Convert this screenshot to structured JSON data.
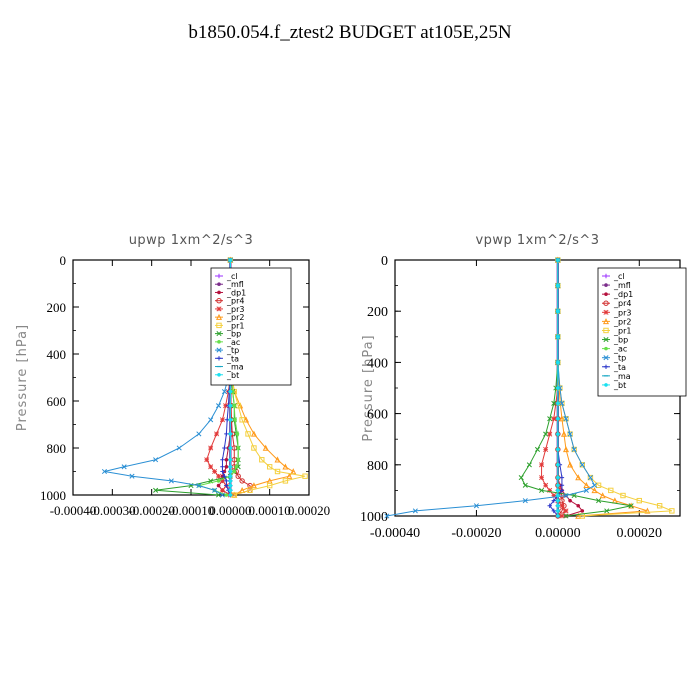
{
  "figure_title": "b1850.054.f_ztest2  BUDGET at105E,25N",
  "colors": {
    "_cl": "#9b30ff",
    "_mfl": "#7b2d8b",
    "_dp1": "#b5103c",
    "_pr4": "#d12d2d",
    "_pr3": "#e23a3a",
    "_pr2": "#ff9a1a",
    "_pr1": "#f4d03f",
    "_bp": "#2ca02c",
    "_ac": "#66e04a",
    "_tp": "#2a8fd4",
    "_ta": "#2b36c9",
    "_ma": "#17a6c4",
    "_bt": "#19e0f0"
  },
  "chart_data": [
    {
      "type": "line",
      "title": "upwp  1xm^2/s^3",
      "xlabel": "",
      "ylabel": "Pressure [hPa]",
      "xlim": [
        -0.0004,
        0.0002
      ],
      "ylim": [
        1000,
        0
      ],
      "xticks": [
        "-0.00040",
        "-0.00030",
        "-0.00020",
        "-0.00010",
        "0.00000",
        "0.00010",
        "0.00020"
      ],
      "yticks": [
        "0",
        "200",
        "400",
        "600",
        "800",
        "1000"
      ],
      "legend_position": "top-right",
      "grid": false,
      "y": [
        0,
        100,
        200,
        300,
        400,
        500,
        560,
        620,
        680,
        740,
        800,
        850,
        880,
        900,
        920,
        940,
        960,
        980,
        1000
      ],
      "series": [
        {
          "name": "_cl",
          "values": [
            0,
            0,
            0,
            0,
            0,
            0,
            0,
            0,
            0,
            0,
            0,
            0,
            0,
            0,
            0,
            0,
            0,
            0,
            0
          ]
        },
        {
          "name": "_mfl",
          "values": [
            0,
            0,
            0,
            0,
            0,
            0,
            0,
            0,
            0,
            0,
            0,
            0,
            0,
            0,
            0,
            0,
            0,
            0,
            0
          ]
        },
        {
          "name": "_dp1",
          "values": [
            0,
            0,
            0,
            0,
            0,
            0,
            0,
            0,
            0,
            0,
            -5e-06,
            -1e-05,
            -1e-05,
            -1.5e-05,
            -2e-05,
            -2e-05,
            -3e-05,
            -2e-05,
            0
          ]
        },
        {
          "name": "_pr4",
          "values": [
            0,
            0,
            0,
            0,
            0,
            0,
            0,
            2e-06,
            3e-06,
            5e-06,
            1e-05,
            1e-05,
            1e-05,
            1.5e-05,
            2e-05,
            3e-05,
            5e-05,
            5e-05,
            1e-05
          ]
        },
        {
          "name": "_pr3",
          "values": [
            0,
            0,
            0,
            0,
            0,
            0,
            -5e-06,
            -1.2e-05,
            -2e-05,
            -3.5e-05,
            -5e-05,
            -6e-05,
            -5e-05,
            -4e-05,
            -3e-05,
            -2e-05,
            -1e-05,
            -2e-05,
            0
          ]
        },
        {
          "name": "_pr2",
          "values": [
            0,
            0,
            0,
            0,
            0,
            5e-06,
            1e-05,
            2.5e-05,
            4e-05,
            6e-05,
            9e-05,
            0.00012,
            0.00014,
            0.00016,
            0.00015,
            0.0001,
            6e-05,
            3e-05,
            1e-05
          ]
        },
        {
          "name": "_pr1",
          "values": [
            0,
            0,
            0,
            0,
            0,
            5e-06,
            1e-05,
            2e-05,
            3e-05,
            4.5e-05,
            6e-05,
            8e-05,
            0.0001,
            0.00012,
            0.00019,
            0.00014,
            0.0001,
            5e-05,
            1e-05
          ]
        },
        {
          "name": "_bp",
          "values": [
            0,
            0,
            0,
            0,
            0,
            3e-06,
            6e-06,
            1e-05,
            1e-05,
            1.5e-05,
            2e-05,
            2e-05,
            2e-05,
            1e-05,
            0,
            -5e-05,
            -0.0001,
            -0.00019,
            -3e-05
          ]
        },
        {
          "name": "_ac",
          "values": [
            0,
            0,
            0,
            0,
            0,
            3e-06,
            6e-06,
            1e-05,
            1.2e-05,
            1.8e-05,
            2e-05,
            2e-05,
            1.5e-05,
            1e-05,
            0,
            -3e-05,
            -8e-05,
            -4e-05,
            -1e-05
          ]
        },
        {
          "name": "_tp",
          "values": [
            0,
            0,
            0,
            0,
            0,
            -5e-06,
            -1.5e-05,
            -3e-05,
            -5e-05,
            -8e-05,
            -0.00013,
            -0.00019,
            -0.00027,
            -0.00032,
            -0.00025,
            -0.00015,
            -8e-05,
            -4e-05,
            -2e-05
          ]
        },
        {
          "name": "_ta",
          "values": [
            0,
            0,
            0,
            0,
            0,
            0,
            -3e-06,
            -5e-06,
            -8e-06,
            -1e-05,
            -1.5e-05,
            -2e-05,
            -2e-05,
            -2e-05,
            -1.5e-05,
            -1e-05,
            -1e-05,
            -5e-06,
            0
          ]
        },
        {
          "name": "_ma",
          "values": [
            0,
            0,
            0,
            0,
            0,
            0,
            0,
            0,
            0,
            0,
            0,
            0,
            0,
            0,
            0,
            0,
            0,
            0,
            0
          ]
        },
        {
          "name": "_bt",
          "values": [
            0,
            0,
            0,
            0,
            0,
            0,
            0,
            0,
            0,
            0,
            0,
            0,
            0,
            0,
            0,
            0,
            0,
            0,
            0
          ]
        }
      ]
    },
    {
      "type": "line",
      "title": "vpwp  1xm^2/s^3",
      "xlabel": "",
      "ylabel": "Pressure [hPa]",
      "xlim": [
        -0.0004,
        0.0003
      ],
      "ylim": [
        1000,
        0
      ],
      "xticks": [
        "-0.00040",
        "-0.00020",
        "0.00000",
        "0.00020"
      ],
      "yticks": [
        "0",
        "200",
        "400",
        "600",
        "800",
        "1000"
      ],
      "legend_position": "top-right",
      "grid": false,
      "y": [
        0,
        100,
        200,
        300,
        400,
        500,
        560,
        620,
        680,
        740,
        800,
        850,
        880,
        900,
        920,
        940,
        960,
        980,
        1000
      ],
      "series": [
        {
          "name": "_cl",
          "values": [
            0,
            0,
            0,
            0,
            0,
            0,
            0,
            0,
            0,
            0,
            0,
            0,
            0,
            0,
            0,
            0,
            0,
            0,
            0
          ]
        },
        {
          "name": "_mfl",
          "values": [
            0,
            0,
            0,
            0,
            0,
            0,
            0,
            0,
            0,
            0,
            0,
            0,
            0,
            0,
            0,
            0,
            0,
            0,
            0
          ]
        },
        {
          "name": "_dp1",
          "values": [
            0,
            0,
            0,
            0,
            0,
            0,
            0,
            0,
            0,
            0,
            0,
            0,
            5e-06,
            1e-05,
            2e-05,
            3e-05,
            5e-05,
            6e-05,
            2e-05
          ]
        },
        {
          "name": "_pr4",
          "values": [
            0,
            0,
            0,
            0,
            0,
            0,
            0,
            0,
            0,
            0,
            0,
            0,
            0,
            5e-06,
            1e-05,
            1e-05,
            1.5e-05,
            1e-05,
            0
          ]
        },
        {
          "name": "_pr3",
          "values": [
            0,
            0,
            0,
            0,
            0,
            0,
            -5e-06,
            -1e-05,
            -2e-05,
            -3e-05,
            -4e-05,
            -4e-05,
            -3e-05,
            -2e-05,
            -1e-05,
            0,
            1e-05,
            2e-05,
            1e-05
          ]
        },
        {
          "name": "_pr2",
          "values": [
            0,
            0,
            0,
            0,
            0,
            3e-06,
            6e-06,
            1e-05,
            1.5e-05,
            2e-05,
            3e-05,
            5e-05,
            7e-05,
            9e-05,
            0.00011,
            0.00014,
            0.00018,
            0.00022,
            5e-05
          ]
        },
        {
          "name": "_pr1",
          "values": [
            0,
            0,
            0,
            0,
            0,
            5e-06,
            1e-05,
            2e-05,
            3e-05,
            4e-05,
            6e-05,
            8e-05,
            0.0001,
            0.00013,
            0.00016,
            0.0002,
            0.00025,
            0.00028,
            6e-05
          ]
        },
        {
          "name": "_bp",
          "values": [
            0,
            0,
            0,
            0,
            0,
            -5e-06,
            -1e-05,
            -2e-05,
            -3e-05,
            -5e-05,
            -7e-05,
            -9e-05,
            -8e-05,
            -4e-05,
            4e-05,
            0.0001,
            0.00018,
            0.00012,
            2e-05
          ]
        },
        {
          "name": "_ac",
          "values": [
            0,
            0,
            0,
            0,
            0,
            0,
            0,
            0,
            0,
            0,
            0,
            0,
            0,
            0,
            0,
            0,
            0,
            0,
            0
          ]
        },
        {
          "name": "_tp",
          "values": [
            0,
            0,
            0,
            0,
            0,
            5e-06,
            1e-05,
            2e-05,
            3e-05,
            4e-05,
            6e-05,
            8e-05,
            9e-05,
            7e-05,
            2e-05,
            -8e-05,
            -0.0002,
            -0.00035,
            -0.00042
          ]
        },
        {
          "name": "_ta",
          "values": [
            0,
            0,
            0,
            0,
            0,
            0,
            0,
            0,
            0,
            0,
            5e-06,
            1e-05,
            1e-05,
            1e-05,
            0,
            -1e-05,
            -2e-05,
            -1e-05,
            0
          ]
        },
        {
          "name": "_ma",
          "values": [
            0,
            0,
            0,
            0,
            0,
            0,
            0,
            0,
            0,
            0,
            0,
            0,
            0,
            0,
            0,
            0,
            0,
            0,
            0
          ]
        },
        {
          "name": "_bt",
          "values": [
            0,
            0,
            0,
            0,
            0,
            0,
            0,
            0,
            0,
            0,
            0,
            0,
            0,
            0,
            0,
            0,
            0,
            0,
            0
          ]
        }
      ]
    }
  ]
}
